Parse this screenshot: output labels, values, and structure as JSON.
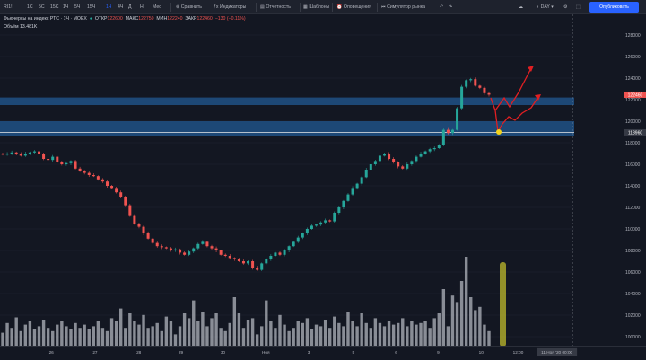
{
  "toolbar": {
    "symbol": "RI1!",
    "intervals": [
      "1С",
      "5С",
      "15С",
      "1Ч",
      "5Ч",
      "15Ч",
      "1Ч",
      "4Ч",
      "Д",
      "Н",
      "Мес"
    ],
    "active_interval_index": 6,
    "compare_label": "Сравнить",
    "indicators_label": "Индикаторы",
    "reports_label": "Отчетность",
    "templates_label": "Шаблоны",
    "alerts_label": "Оповещения",
    "simulator_label": "Симулятор рынка",
    "timeframe_label": "DAY",
    "publish_label": "Опубликовать"
  },
  "legend": {
    "title": "Фьючерсы на индекс РТС · 1Ч · MOEX",
    "open_label": "ОТКР",
    "open_value": "122600",
    "high_label": "МАКС",
    "high_value": "122750",
    "low_label": "МИН",
    "low_value": "122240",
    "close_label": "ЗАКР",
    "close_value": "122460",
    "change_value": "−130 (−0.11%)",
    "volume_label": "Объём",
    "volume_value": "13.481K"
  },
  "price_axis": {
    "ticks": [
      "128000",
      "126000",
      "124000",
      "122000",
      "120000",
      "118000",
      "116000",
      "114000",
      "112000",
      "110000",
      "108000",
      "106000",
      "104000",
      "102000",
      "100000"
    ],
    "current_price_label": "122460",
    "crosshair_price_label": "118960"
  },
  "time_axis": {
    "ticks": [
      "26",
      "27",
      "28",
      "29",
      "30",
      "Ноя",
      "3",
      "5",
      "6",
      "9",
      "10",
      "12:00"
    ],
    "crosshair_time_label": "11 Ноя '20   00:00"
  },
  "chart_data": {
    "type": "candlestick",
    "ylim": [
      99000,
      129000
    ],
    "up_color": "#26a69a",
    "down_color": "#ef5350",
    "zones": [
      {
        "from": 121500,
        "to": 122200
      },
      {
        "from": 118600,
        "to": 120000
      }
    ],
    "crosshair_price": 118960,
    "close_series": [
      116900,
      117000,
      117100,
      117000,
      116800,
      117000,
      117100,
      117200,
      117000,
      116500,
      116400,
      116700,
      116200,
      116000,
      116100,
      116300,
      115600,
      115400,
      115200,
      115000,
      114900,
      114600,
      114400,
      114000,
      113800,
      113400,
      113000,
      112200,
      111200,
      110500,
      110200,
      109600,
      109100,
      108700,
      108400,
      108300,
      108200,
      108000,
      108100,
      107800,
      107600,
      107900,
      108200,
      108600,
      108800,
      108400,
      108200,
      108000,
      107600,
      107500,
      107300,
      107200,
      107000,
      106800,
      107000,
      106400,
      106200,
      106800,
      107200,
      107500,
      107800,
      107600,
      108000,
      108400,
      108800,
      109200,
      109600,
      110000,
      110300,
      110400,
      110600,
      110800,
      110700,
      111500,
      112000,
      112600,
      113200,
      113800,
      114200,
      114800,
      115500,
      116000,
      116300,
      116800,
      117000,
      116500,
      116200,
      115800,
      115600,
      116000,
      116300,
      116700,
      117000,
      117200,
      117400,
      117500,
      117800,
      119200,
      118900,
      119200,
      121200,
      123200,
      123800,
      123900,
      123300,
      123100,
      122600,
      122460
    ],
    "volume_series": [
      16,
      28,
      22,
      35,
      18,
      26,
      30,
      20,
      24,
      32,
      22,
      18,
      26,
      30,
      24,
      20,
      28,
      22,
      26,
      20,
      24,
      30,
      22,
      18,
      34,
      30,
      46,
      22,
      40,
      30,
      26,
      38,
      22,
      24,
      28,
      18,
      36,
      30,
      14,
      24,
      40,
      34,
      56,
      30,
      42,
      24,
      34,
      40,
      22,
      18,
      28,
      60,
      40,
      22,
      32,
      34,
      14,
      24,
      56,
      30,
      22,
      38,
      26,
      18,
      22,
      30,
      28,
      34,
      20,
      26,
      24,
      32,
      22,
      36,
      28,
      24,
      42,
      30,
      24,
      40,
      28,
      22,
      34,
      28,
      24,
      30,
      26,
      28,
      34,
      24,
      30,
      26,
      28,
      30,
      22,
      34,
      40,
      70,
      24,
      62,
      54,
      80,
      110,
      60,
      44,
      48,
      26,
      18
    ],
    "volume_highlight": 100
  }
}
